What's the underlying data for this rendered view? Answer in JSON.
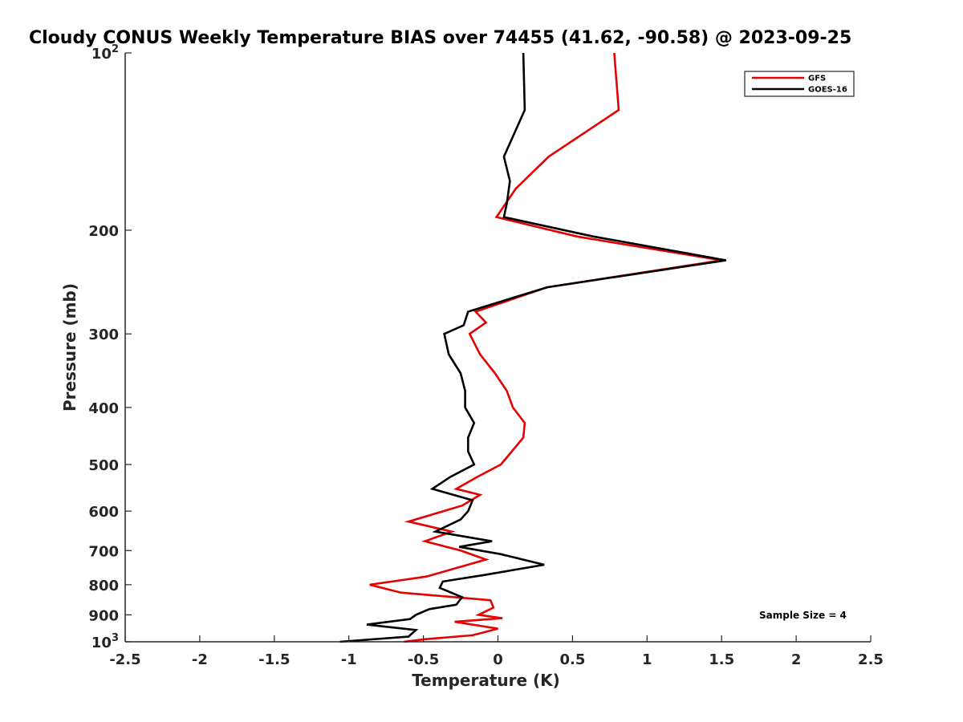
{
  "chart_data": {
    "type": "line",
    "title": "Cloudy CONUS Weekly Temperature BIAS over 74455 (41.62, -90.58) @ 2023-09-25",
    "xlabel": "Temperature (K)",
    "ylabel": "Pressure (mb)",
    "xlim": [
      -2.5,
      2.5
    ],
    "ylim": [
      100,
      1000
    ],
    "yscale": "log",
    "y_reversed": true,
    "grid": false,
    "legend_position": "top-right",
    "xticks": [
      -2.5,
      -2,
      -1.5,
      -1,
      -0.5,
      0,
      0.5,
      1,
      1.5,
      2,
      2.5
    ],
    "xtick_labels": [
      "-2.5",
      "-2",
      "-1.5",
      "-1",
      "-0.5",
      "0",
      "0.5",
      "1",
      "1.5",
      "2",
      "2.5"
    ],
    "yticks": [
      {
        "value": 100,
        "base": "10",
        "exp": "2"
      },
      {
        "value": 200,
        "label": "200"
      },
      {
        "value": 300,
        "label": "300"
      },
      {
        "value": 400,
        "label": "400"
      },
      {
        "value": 500,
        "label": "500"
      },
      {
        "value": 600,
        "label": "600"
      },
      {
        "value": 700,
        "label": "700"
      },
      {
        "value": 800,
        "label": "800"
      },
      {
        "value": 900,
        "label": "900"
      },
      {
        "value": 1000,
        "base": "10",
        "exp": "3"
      }
    ],
    "series": [
      {
        "name": "GFS",
        "color": "#e60000",
        "points": [
          [
            0.78,
            100
          ],
          [
            0.81,
            125
          ],
          [
            0.34,
            150
          ],
          [
            0.12,
            170
          ],
          [
            -0.01,
            190
          ],
          [
            0.53,
            205
          ],
          [
            1.5,
            225
          ],
          [
            0.33,
            250
          ],
          [
            -0.15,
            275
          ],
          [
            -0.08,
            287
          ],
          [
            -0.19,
            300
          ],
          [
            -0.12,
            325
          ],
          [
            -0.02,
            350
          ],
          [
            0.06,
            375
          ],
          [
            0.1,
            400
          ],
          [
            0.18,
            425
          ],
          [
            0.17,
            450
          ],
          [
            0.02,
            500
          ],
          [
            -0.14,
            525
          ],
          [
            -0.28,
            550
          ],
          [
            -0.12,
            563
          ],
          [
            -0.24,
            587
          ],
          [
            -0.6,
            625
          ],
          [
            -0.31,
            650
          ],
          [
            -0.49,
            675
          ],
          [
            -0.25,
            700
          ],
          [
            -0.08,
            725
          ],
          [
            -0.48,
            775
          ],
          [
            -0.86,
            800
          ],
          [
            -0.65,
            825
          ],
          [
            -0.05,
            850
          ],
          [
            -0.03,
            875
          ],
          [
            -0.13,
            900
          ],
          [
            0.03,
            912
          ],
          [
            -0.29,
            925
          ],
          [
            0,
            950
          ],
          [
            -0.17,
            975
          ],
          [
            -0.49,
            990
          ],
          [
            -0.63,
            1000
          ]
        ]
      },
      {
        "name": "GOES-16",
        "color": "#000000",
        "points": [
          [
            0.17,
            100
          ],
          [
            0.18,
            125
          ],
          [
            0.04,
            150
          ],
          [
            0.08,
            165
          ],
          [
            0.06,
            180
          ],
          [
            0.04,
            190
          ],
          [
            0.64,
            205
          ],
          [
            1.53,
            225
          ],
          [
            0.33,
            250
          ],
          [
            -0.2,
            275
          ],
          [
            -0.23,
            290
          ],
          [
            -0.36,
            300
          ],
          [
            -0.33,
            325
          ],
          [
            -0.25,
            350
          ],
          [
            -0.22,
            375
          ],
          [
            -0.22,
            400
          ],
          [
            -0.16,
            425
          ],
          [
            -0.2,
            450
          ],
          [
            -0.2,
            475
          ],
          [
            -0.16,
            500
          ],
          [
            -0.32,
            525
          ],
          [
            -0.44,
            550
          ],
          [
            -0.17,
            575
          ],
          [
            -0.2,
            600
          ],
          [
            -0.25,
            620
          ],
          [
            -0.42,
            650
          ],
          [
            -0.04,
            675
          ],
          [
            -0.26,
            690
          ],
          [
            0.02,
            710
          ],
          [
            0.31,
            740
          ],
          [
            -0.09,
            770
          ],
          [
            -0.37,
            790
          ],
          [
            -0.39,
            810
          ],
          [
            -0.24,
            840
          ],
          [
            -0.28,
            865
          ],
          [
            -0.46,
            880
          ],
          [
            -0.55,
            900
          ],
          [
            -0.59,
            915
          ],
          [
            -0.88,
            935
          ],
          [
            -0.55,
            955
          ],
          [
            -0.6,
            980
          ],
          [
            -1.06,
            1000
          ]
        ]
      }
    ],
    "annotations": [
      {
        "text": "Sample Size = 4"
      }
    ]
  }
}
